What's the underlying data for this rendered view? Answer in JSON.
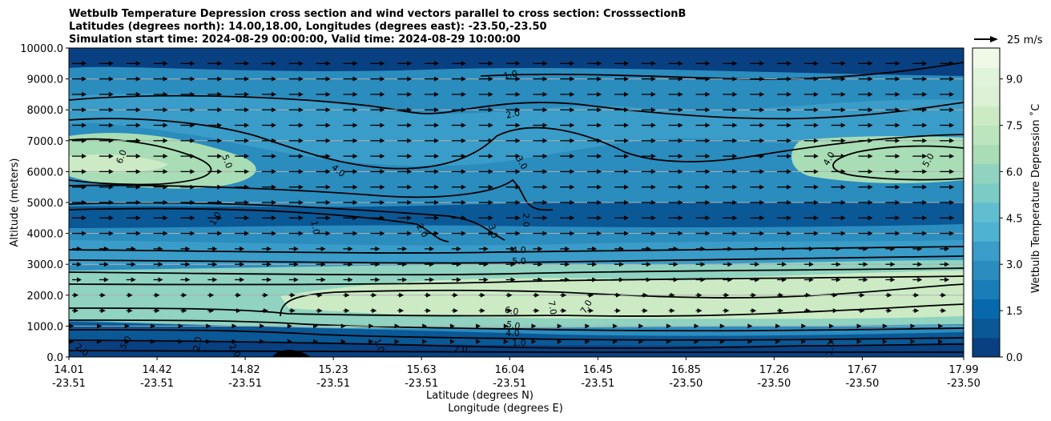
{
  "chart_data": {
    "type": "contour",
    "title_lines": [
      "Wetbulb Temperature Depression cross section and wind vectors parallel to cross section: CrosssectionB",
      "Latitudes (degrees north): 14.00,18.00, Longitudes (degrees east): -23.50,-23.50",
      "Simulation start time: 2024-08-29 00:00:00, Valid time: 2024-08-29 10:00:00"
    ],
    "ylabel": "Altitude (meters)",
    "xlabel_lines": [
      "Latitude (degrees N)",
      "Longitude (degrees E)"
    ],
    "ylim": [
      0,
      10000
    ],
    "y_ticks": [
      "0.0",
      "1000.0",
      "2000.0",
      "3000.0",
      "4000.0",
      "5000.0",
      "6000.0",
      "7000.0",
      "8000.0",
      "9000.0",
      "10000.0"
    ],
    "x_ticks": [
      {
        "lat": "14.01",
        "lon": "-23.51"
      },
      {
        "lat": "14.42",
        "lon": "-23.51"
      },
      {
        "lat": "14.82",
        "lon": "-23.51"
      },
      {
        "lat": "15.23",
        "lon": "-23.51"
      },
      {
        "lat": "15.63",
        "lon": "-23.51"
      },
      {
        "lat": "16.04",
        "lon": "-23.51"
      },
      {
        "lat": "16.45",
        "lon": "-23.51"
      },
      {
        "lat": "16.85",
        "lon": "-23.50"
      },
      {
        "lat": "17.26",
        "lon": "-23.50"
      },
      {
        "lat": "17.67",
        "lon": "-23.50"
      },
      {
        "lat": "17.99",
        "lon": "-23.50"
      }
    ],
    "grid": "horizontal",
    "colorbar": {
      "label": "Wetbulb Temperature Depression $^\\circ$C",
      "label_text": "Wetbulb Temperature Depression ˚C",
      "range": [
        0,
        10
      ],
      "ticks": [
        "0.0",
        "1.5",
        "3.0",
        "4.5",
        "6.0",
        "7.5",
        "9.0"
      ],
      "colors": [
        "#084081",
        "#0a5896",
        "#0868ac",
        "#1a7db8",
        "#2b8cbe",
        "#3a9cc8",
        "#4eb3d3",
        "#61bdd0",
        "#7bccc4",
        "#8fd3c0",
        "#a8ddb5",
        "#bce5be",
        "#ccebc5",
        "#dbf0d4",
        "#e0f3db",
        "#f0f9e8"
      ]
    },
    "contour_labels": [
      "1.0",
      "2.0",
      "3.0",
      "4.0",
      "5.0",
      "6.0",
      "7.0"
    ],
    "wind_reference": "25 m/s"
  }
}
